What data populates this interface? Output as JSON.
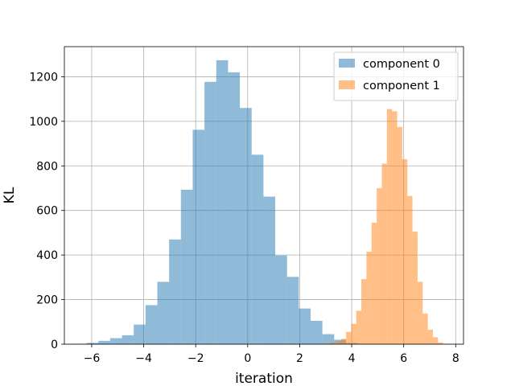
{
  "chart_data": {
    "type": "bar",
    "xlabel": "iteration",
    "ylabel": "KL",
    "xlim": [
      -7.05,
      8.3
    ],
    "ylim": [
      0,
      1335
    ],
    "xticks": [
      -6,
      -4,
      -2,
      0,
      2,
      4,
      6,
      8
    ],
    "xtick_labels": [
      "−6",
      "−4",
      "−2",
      "0",
      "2",
      "4",
      "6",
      "8"
    ],
    "yticks": [
      0,
      200,
      400,
      600,
      800,
      1000,
      1200
    ],
    "ytick_labels": [
      "0",
      "200",
      "400",
      "600",
      "800",
      "1000",
      "1200"
    ],
    "grid": true,
    "legend_position": "top-right",
    "series": [
      {
        "name": "component 0",
        "color": "#1f77b4",
        "alpha": 0.5,
        "bin_start": -6.65,
        "bin_width": 0.4535,
        "values": [
          2,
          6,
          15,
          27,
          40,
          88,
          175,
          280,
          470,
          693,
          962,
          1177,
          1274,
          1220,
          1060,
          850,
          662,
          398,
          302,
          160,
          105,
          45,
          20,
          5
        ]
      },
      {
        "name": "component 1",
        "color": "#ff7f0e",
        "alpha": 0.5,
        "bin_start": 2.8,
        "bin_width": 0.1965,
        "values": [
          2,
          3,
          8,
          14,
          24,
          55,
          92,
          150,
          292,
          415,
          545,
          700,
          810,
          1055,
          1045,
          975,
          830,
          665,
          505,
          280,
          138,
          65,
          31,
          8
        ]
      }
    ]
  }
}
